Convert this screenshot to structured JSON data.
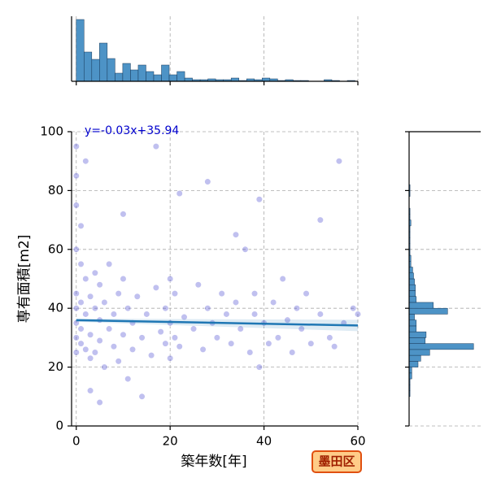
{
  "chart_data": {
    "type": "scatter",
    "xlabel": "築年数[年]",
    "ylabel": "専有面積[m2]",
    "annotation": "y=-0.03x+35.94",
    "badge": "墨田区",
    "xlim": [
      -1,
      60
    ],
    "ylim": [
      0,
      100
    ],
    "xticks": [
      0,
      20,
      40,
      60
    ],
    "yticks": [
      0,
      20,
      40,
      60,
      80,
      100
    ],
    "grid": true,
    "color": "#4a4ad0",
    "line_color": "#1f77b4",
    "hist_color": "#3a87c0",
    "x": [
      0,
      0,
      0,
      0,
      0,
      0,
      0,
      0,
      1,
      1,
      1,
      1,
      2,
      2,
      2,
      3,
      3,
      3,
      4,
      4,
      4,
      5,
      5,
      5,
      6,
      6,
      7,
      7,
      8,
      8,
      9,
      9,
      10,
      10,
      11,
      11,
      12,
      12,
      13,
      14,
      15,
      16,
      17,
      18,
      19,
      19,
      20,
      20,
      20,
      21,
      21,
      22,
      23,
      25,
      26,
      27,
      28,
      29,
      30,
      31,
      32,
      33,
      34,
      35,
      36,
      37,
      38,
      38,
      39,
      40,
      41,
      42,
      43,
      44,
      45,
      46,
      47,
      48,
      49,
      50,
      52,
      54,
      55,
      57,
      59,
      60,
      0,
      1,
      2,
      3,
      17,
      28,
      39,
      52,
      56,
      5,
      10,
      14,
      22,
      34
    ],
    "y": [
      85,
      75,
      60,
      45,
      40,
      35,
      30,
      25,
      55,
      42,
      33,
      28,
      50,
      38,
      26,
      44,
      31,
      23,
      52,
      40,
      25,
      36,
      29,
      48,
      42,
      20,
      55,
      33,
      38,
      27,
      45,
      22,
      50,
      31,
      40,
      16,
      35,
      26,
      44,
      30,
      38,
      24,
      47,
      32,
      40,
      28,
      35,
      50,
      23,
      45,
      30,
      27,
      37,
      33,
      48,
      26,
      40,
      35,
      30,
      45,
      38,
      28,
      42,
      33,
      60,
      25,
      38,
      45,
      20,
      35,
      28,
      42,
      30,
      50,
      36,
      25,
      40,
      33,
      45,
      28,
      38,
      30,
      27,
      35,
      40,
      38,
      95,
      68,
      90,
      12,
      95,
      83,
      77,
      70,
      90,
      8,
      72,
      10,
      79,
      65
    ],
    "regression": {
      "x": [
        0,
        60
      ],
      "y": [
        35.94,
        34.14
      ]
    },
    "top_histogram": {
      "ylim": [
        0,
        80
      ],
      "bins": [
        0,
        1.65,
        3.3,
        4.95,
        6.6,
        8.25,
        9.9,
        11.55,
        13.2,
        14.85,
        16.5,
        18.15,
        19.8,
        21.45,
        23.1,
        24.75,
        26.4,
        28.05,
        29.7,
        31.35,
        33,
        34.65,
        36.3,
        37.95,
        39.6,
        41.25,
        42.9,
        44.55,
        46.2,
        47.85,
        49.5,
        51.15,
        52.8,
        54.45,
        56.1,
        57.75,
        59.4
      ],
      "values": [
        76,
        36,
        27,
        47,
        28,
        10,
        22,
        14,
        20,
        12,
        8,
        20,
        8,
        12,
        4,
        2,
        2,
        3,
        2,
        2,
        4,
        1,
        3,
        2,
        4,
        3,
        1,
        2,
        1,
        1,
        0,
        0,
        2,
        1,
        0,
        1
      ]
    },
    "right_histogram": {
      "xlim": [
        0,
        80
      ],
      "bins": [
        10,
        12,
        14,
        16,
        18,
        20,
        22,
        24,
        26,
        28,
        30,
        32,
        34,
        36,
        38,
        40,
        42,
        44,
        46,
        48,
        50,
        52,
        54,
        56,
        58,
        60,
        62,
        64,
        66,
        68,
        70,
        72,
        74,
        76,
        78,
        80,
        82,
        84,
        86,
        88,
        90,
        92,
        94,
        96,
        98,
        100
      ],
      "values": [
        1,
        1,
        1,
        3,
        3,
        10,
        13,
        23,
        72,
        18,
        19,
        8,
        8,
        6,
        43,
        27,
        8,
        7,
        7,
        6,
        5,
        4,
        2,
        2,
        1,
        1,
        1,
        1,
        1,
        2,
        1,
        1,
        0,
        0,
        1,
        1,
        0,
        0,
        0,
        0,
        0,
        0,
        0,
        0,
        0
      ]
    }
  }
}
